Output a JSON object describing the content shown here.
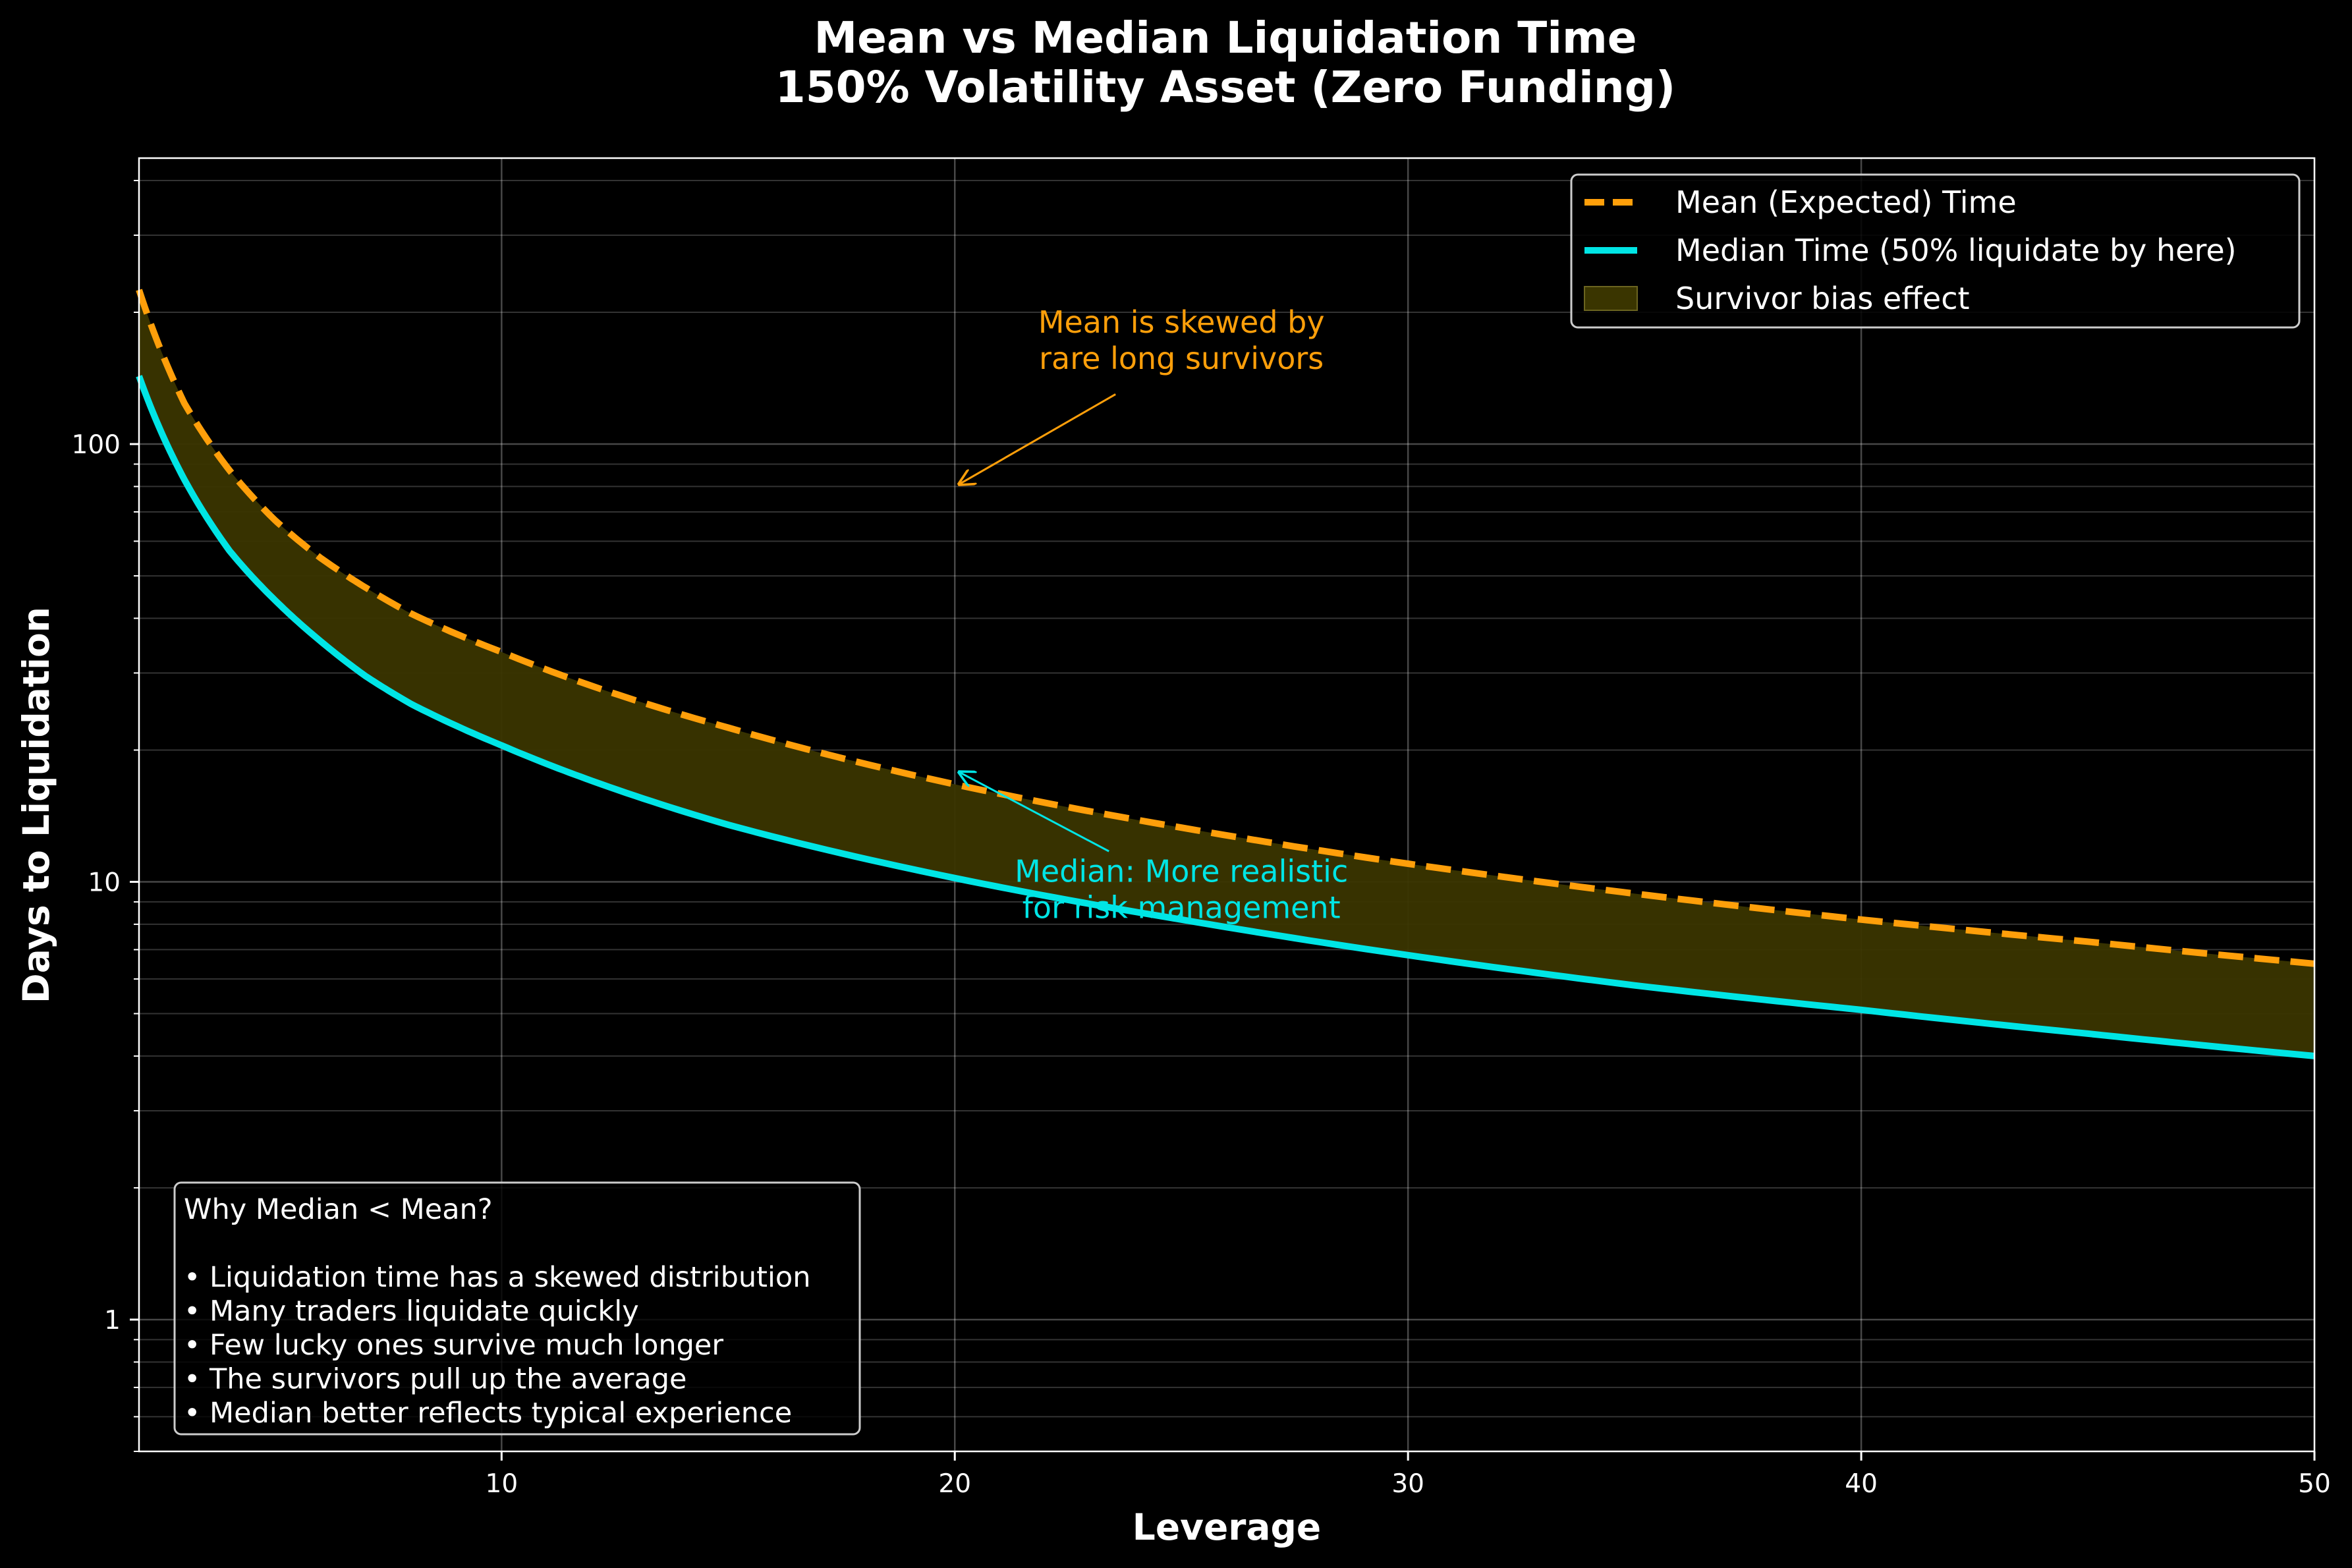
{
  "chart_data": {
    "type": "line",
    "title_lines": [
      "Mean vs Median Liquidation Time",
      "150% Volatility Asset (Zero Funding)"
    ],
    "xlabel": "Leverage",
    "ylabel": "Days to Liquidation",
    "x_scale": "linear",
    "y_scale": "log",
    "xlim": [
      2,
      50
    ],
    "ylim": [
      0.5,
      450
    ],
    "x_ticks": [
      10,
      20,
      30,
      40,
      50
    ],
    "x_tick_labels": [
      "10",
      "20",
      "30",
      "40",
      "50"
    ],
    "y_ticks": [
      1,
      10,
      100
    ],
    "y_tick_labels": [
      "1",
      "10",
      "100"
    ],
    "grid": true,
    "legend_position": "top-right",
    "x": [
      2,
      3,
      4,
      5,
      6,
      7,
      8,
      10,
      12,
      15,
      20,
      25,
      30,
      35,
      40,
      45,
      50
    ],
    "series": [
      {
        "name": "Mean (Expected) Time",
        "color": "#ff9f0a",
        "style": "dashed",
        "values": [
          225,
          124,
          87,
          67,
          55,
          47,
          41,
          33.5,
          28,
          22.5,
          16.7,
          13.3,
          11.0,
          9.4,
          8.2,
          7.3,
          6.5
        ]
      },
      {
        "name": "Median Time (50% liquidate by here)",
        "color": "#00e5e5",
        "style": "solid",
        "values": [
          143,
          83,
          57,
          44,
          35.5,
          29.5,
          25.5,
          20.5,
          17.0,
          13.5,
          10.2,
          8.2,
          6.8,
          5.8,
          5.1,
          4.5,
          4.0
        ]
      }
    ],
    "fill_between": {
      "name": "Survivor bias effect",
      "color": "#3a3500",
      "between": [
        "Mean (Expected) Time",
        "Median Time (50% liquidate by here)"
      ]
    },
    "annotations": [
      {
        "lines": [
          "Mean is skewed by",
          "rare long survivors"
        ],
        "color": "#ff9f0a",
        "text_at": [
          25,
          160
        ],
        "arrow_to": [
          20.1,
          81
        ]
      },
      {
        "lines": [
          "Median: More realistic",
          "for risk management"
        ],
        "color": "#00e5e5",
        "text_at": [
          25,
          8.9
        ],
        "arrow_to": [
          20.1,
          17.8
        ]
      }
    ],
    "info_box": {
      "lines": [
        "Why Median < Mean?",
        "",
        "• Liquidation time has a skewed distribution",
        "• Many traders liquidate quickly",
        "• Few lucky ones survive much longer",
        "• The survivors pull up the average",
        "• Median better reflects typical experience"
      ]
    }
  }
}
